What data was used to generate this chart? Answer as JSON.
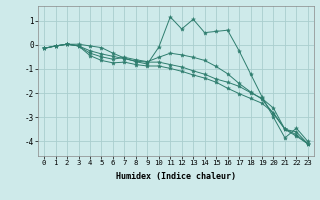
{
  "xlabel": "Humidex (Indice chaleur)",
  "background_color": "#ceeaea",
  "grid_color": "#aacece",
  "line_color": "#2e7d6e",
  "xlim": [
    -0.5,
    23.5
  ],
  "ylim": [
    -4.6,
    1.6
  ],
  "yticks": [
    -4,
    -3,
    -2,
    -1,
    0,
    1
  ],
  "xticks": [
    0,
    1,
    2,
    3,
    4,
    5,
    6,
    7,
    8,
    9,
    10,
    11,
    12,
    13,
    14,
    15,
    16,
    17,
    18,
    19,
    20,
    21,
    22,
    23
  ],
  "series": [
    [
      -0.15,
      -0.05,
      0.02,
      0.02,
      -0.05,
      -0.12,
      -0.35,
      -0.55,
      -0.7,
      -0.8,
      -0.1,
      1.15,
      0.65,
      1.05,
      0.5,
      0.55,
      0.6,
      -0.25,
      -1.2,
      -2.15,
      -3.0,
      -3.85,
      -3.45,
      -4.0
    ],
    [
      -0.15,
      -0.05,
      0.02,
      -0.05,
      -0.35,
      -0.5,
      -0.6,
      -0.52,
      -0.62,
      -0.7,
      -0.52,
      -0.35,
      -0.42,
      -0.52,
      -0.65,
      -0.9,
      -1.2,
      -1.6,
      -1.95,
      -2.25,
      -2.85,
      -3.5,
      -3.6,
      -4.1
    ],
    [
      -0.15,
      -0.05,
      0.02,
      -0.05,
      -0.45,
      -0.65,
      -0.75,
      -0.72,
      -0.82,
      -0.88,
      -0.88,
      -0.98,
      -1.1,
      -1.25,
      -1.38,
      -1.55,
      -1.8,
      -2.02,
      -2.22,
      -2.42,
      -2.82,
      -3.48,
      -3.72,
      -4.1
    ],
    [
      -0.15,
      -0.05,
      0.02,
      -0.05,
      -0.25,
      -0.38,
      -0.48,
      -0.58,
      -0.68,
      -0.72,
      -0.72,
      -0.82,
      -0.92,
      -1.08,
      -1.22,
      -1.42,
      -1.55,
      -1.72,
      -1.98,
      -2.22,
      -2.62,
      -3.5,
      -3.78,
      -4.1
    ]
  ]
}
